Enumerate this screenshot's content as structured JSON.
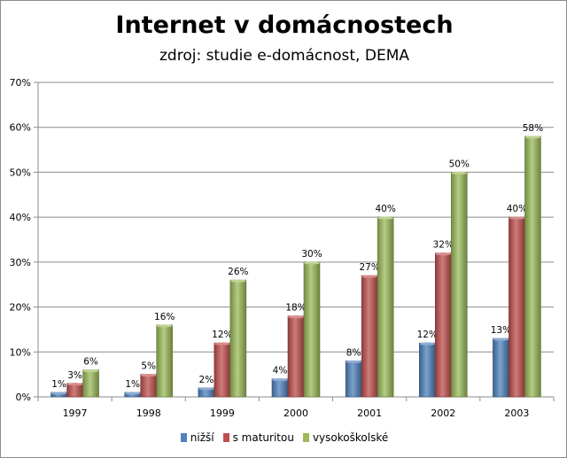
{
  "chart_data": {
    "type": "bar",
    "title": "Internet v domácnostech",
    "subtitle": "zdroj: studie e-domácnost, DEMA",
    "categories": [
      "1997",
      "1998",
      "1999",
      "2000",
      "2001",
      "2002",
      "2003"
    ],
    "series": [
      {
        "name": "nižší",
        "color": "#4f81bd",
        "values": [
          1,
          1,
          2,
          4,
          8,
          12,
          13
        ],
        "labels": [
          "1%",
          "1%",
          "2%",
          "4%",
          "8%",
          "12%",
          "13%"
        ]
      },
      {
        "name": "s maturitou",
        "color": "#c0504d",
        "values": [
          3,
          5,
          12,
          18,
          27,
          32,
          40
        ],
        "labels": [
          "3%",
          "5%",
          "12%",
          "18%",
          "27%",
          "32%",
          "40%"
        ]
      },
      {
        "name": "vysokoškolské",
        "color": "#9bbb59",
        "values": [
          6,
          16,
          26,
          30,
          40,
          50,
          58
        ],
        "labels": [
          "6%",
          "16%",
          "26%",
          "30%",
          "40%",
          "50%",
          "58%"
        ]
      }
    ],
    "ylim": [
      0,
      70
    ],
    "yticks": [
      "0%",
      "10%",
      "20%",
      "30%",
      "40%",
      "50%",
      "60%",
      "70%"
    ],
    "grid": true,
    "legend_position": "bottom"
  }
}
